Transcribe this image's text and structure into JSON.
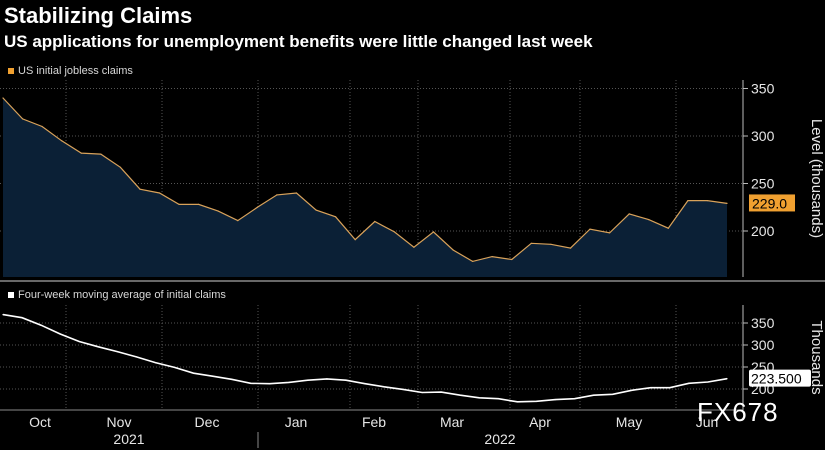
{
  "title": "Stabilizing Claims",
  "subtitle": "US applications for unemployment benefits were little changed last week",
  "watermark": "FX678",
  "colors": {
    "background": "#000000",
    "area_fill": "#0b2036",
    "area_line": "#d9a25a",
    "ma_line": "#ffffff",
    "grid": "#555555",
    "label_bg": "#f0a030"
  },
  "chart_data": [
    {
      "type": "area",
      "legend": "US initial jobless claims",
      "ylabel": "Level (thousands)",
      "yticks": [
        200,
        250,
        300,
        350
      ],
      "ylim": [
        150,
        360
      ],
      "last_value_label": "229.0",
      "values": [
        340,
        318,
        310,
        295,
        282,
        281,
        267,
        244,
        240,
        228,
        228,
        221,
        211,
        225,
        238,
        240,
        222,
        215,
        191,
        210,
        199,
        183,
        199,
        180,
        168,
        173,
        170,
        187,
        186,
        182,
        202,
        198,
        218,
        212,
        203,
        232,
        232,
        229
      ]
    },
    {
      "type": "line",
      "legend": "Four-week moving average of initial claims",
      "ylabel": "Thousands",
      "yticks": [
        200,
        250,
        300,
        350
      ],
      "ylim": [
        170,
        385
      ],
      "last_value_label": "223.500",
      "values": [
        369,
        362,
        345,
        325,
        308,
        296,
        285,
        273,
        260,
        249,
        236,
        229,
        222,
        213,
        212,
        215,
        220,
        223,
        220,
        212,
        205,
        199,
        192,
        193,
        186,
        180,
        178,
        171,
        172,
        176,
        178,
        186,
        188,
        197,
        203,
        203,
        213,
        216,
        223.5
      ]
    }
  ],
  "x_axis": {
    "months": [
      "Oct",
      "Nov",
      "Dec",
      "Jan",
      "Feb",
      "Mar",
      "Apr",
      "May",
      "Jun"
    ],
    "years": [
      "2021",
      "2022"
    ]
  }
}
